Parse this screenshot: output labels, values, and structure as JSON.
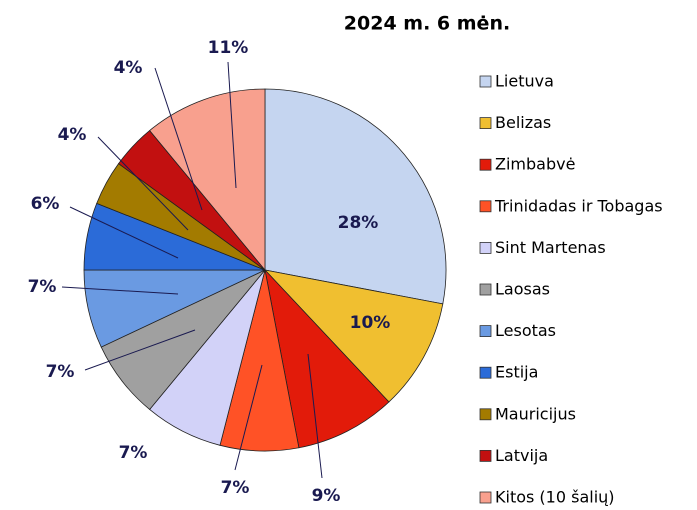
{
  "chart_data": {
    "type": "pie",
    "title": "2024 m. 6 mėn.",
    "categories": [
      "Lietuva",
      "Belizas",
      "Zimbabvė",
      "Trinidadas ir Tobagas",
      "Sint Martenas",
      "Laosas",
      "Lesotas",
      "Estija",
      "Mauricijus",
      "Latvija",
      "Kitos (10 šalių)"
    ],
    "values": [
      28,
      10,
      9,
      7,
      7,
      7,
      7,
      6,
      4,
      4,
      11
    ],
    "value_labels": [
      "28%",
      "10%",
      "9%",
      "7%",
      "7%",
      "7%",
      "7%",
      "6%",
      "4%",
      "4%",
      "11%"
    ],
    "colors": [
      "#c5d5f0",
      "#f0bf30",
      "#e21b0a",
      "#ff5226",
      "#d2d2f8",
      "#a0a0a0",
      "#6a9ae2",
      "#2b6bd8",
      "#a37b00",
      "#c21010",
      "#f8a08e"
    ],
    "legend": "right"
  }
}
